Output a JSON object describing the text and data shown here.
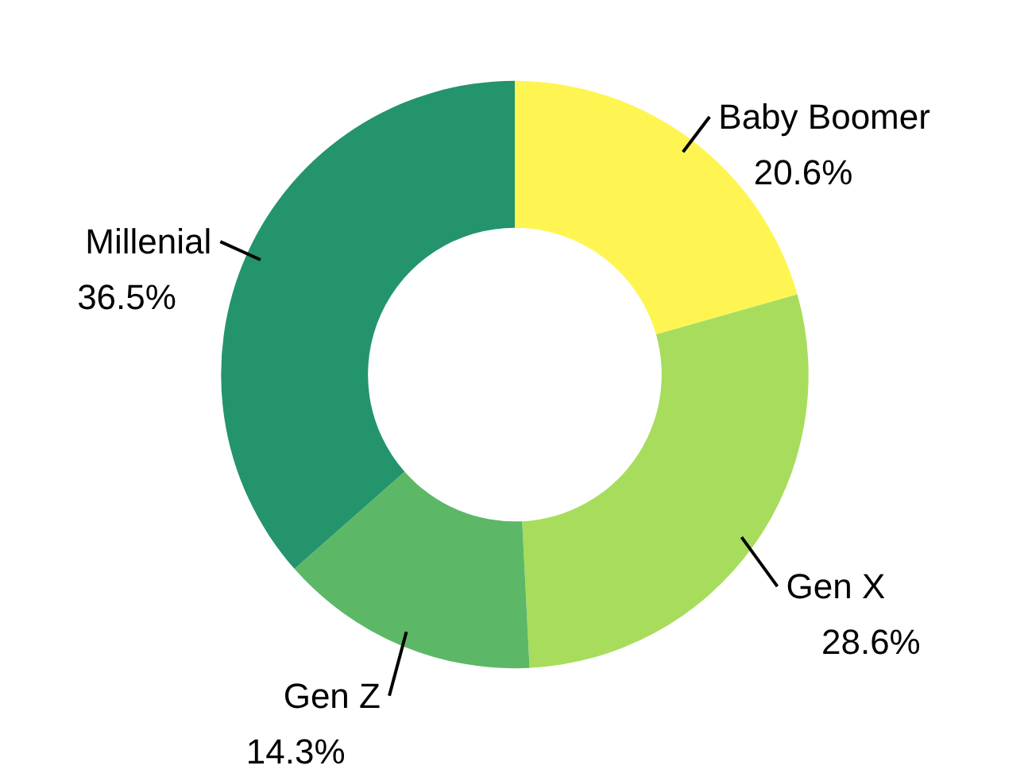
{
  "chart_data": {
    "type": "donut",
    "categories": [
      "Baby Boomer",
      "Gen X",
      "Gen Z",
      "Millenial"
    ],
    "values": [
      20.6,
      28.6,
      14.3,
      36.5
    ],
    "value_labels": [
      "20.6%",
      "28.6%",
      "14.3%",
      "36.5%"
    ],
    "colors": [
      "#fef553",
      "#a8dc5d",
      "#5cb867",
      "#24946c"
    ]
  }
}
